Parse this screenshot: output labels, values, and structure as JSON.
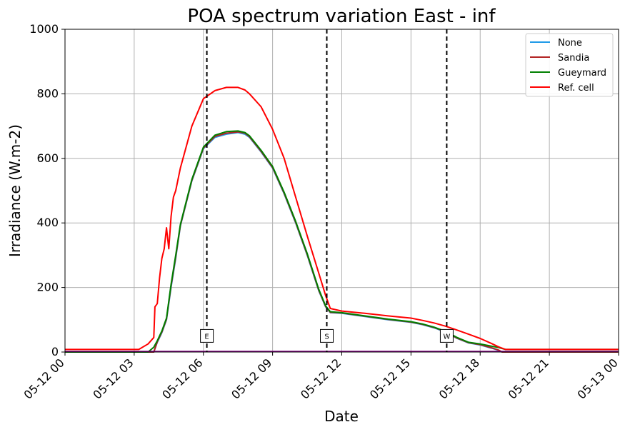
{
  "chart_data": {
    "type": "line",
    "title": "POA spectrum variation East - inf",
    "xlabel": "Date",
    "ylabel": "Irradiance (W.m-2)",
    "xlim": [
      "2024-05-12 00:00",
      "2024-05-13 00:00"
    ],
    "ylim": [
      0,
      1000
    ],
    "grid": true,
    "legend_position": "top-right",
    "xticks": [
      "05-12 00",
      "05-12 03",
      "05-12 06",
      "05-12 09",
      "05-12 12",
      "05-12 15",
      "05-12 18",
      "05-12 21",
      "05-13 00"
    ],
    "xtick_hours": [
      0,
      3,
      6,
      9,
      12,
      15,
      18,
      21,
      24
    ],
    "yticks": [
      0,
      200,
      400,
      600,
      800,
      1000
    ],
    "vlines": [
      {
        "label": "E",
        "x_hour": 6.15
      },
      {
        "label": "S",
        "x_hour": 11.35
      },
      {
        "label": "W",
        "x_hour": 16.55
      }
    ],
    "series": [
      {
        "name": "None",
        "color": "#1f9ae8",
        "x_hour": [
          0,
          3.6,
          3.85,
          4.0,
          4.2,
          4.4,
          4.6,
          4.8,
          5.0,
          5.5,
          6.0,
          6.5,
          7.0,
          7.5,
          7.8,
          8.0,
          8.5,
          9.0,
          9.5,
          10.0,
          10.5,
          11.0,
          11.3,
          11.5,
          12.0,
          13.0,
          14.0,
          15.0,
          15.5,
          16.0,
          16.5,
          17.0,
          17.5,
          18.0,
          18.5,
          18.8,
          18.95,
          24
        ],
        "y": [
          0,
          0,
          0,
          30,
          60,
          100,
          200,
          290,
          390,
          530,
          630,
          665,
          675,
          680,
          675,
          665,
          620,
          570,
          490,
          400,
          300,
          190,
          140,
          122,
          120,
          110,
          100,
          92,
          85,
          75,
          62,
          42,
          28,
          22,
          12,
          5,
          0,
          0
        ]
      },
      {
        "name": "Sandia",
        "color": "#b22222",
        "x_hour": [
          0,
          3.6,
          3.85,
          4.0,
          4.2,
          4.4,
          4.6,
          4.8,
          5.0,
          5.5,
          6.0,
          6.5,
          7.0,
          7.5,
          7.8,
          8.0,
          8.5,
          9.0,
          9.5,
          10.0,
          10.5,
          11.0,
          11.3,
          11.5,
          12.0,
          13.0,
          14.0,
          15.0,
          15.5,
          16.0,
          16.5,
          17.0,
          17.5,
          18.0,
          18.5,
          18.8,
          18.95,
          24
        ],
        "y": [
          0,
          0,
          0,
          32,
          62,
          102,
          205,
          295,
          392,
          532,
          632,
          668,
          678,
          682,
          678,
          667,
          622,
          572,
          492,
          402,
          302,
          192,
          141,
          123,
          121,
          111,
          101,
          93,
          86,
          76,
          63,
          43,
          29,
          23,
          13,
          6,
          0,
          0
        ]
      },
      {
        "name": "Gueymard",
        "color": "#008000",
        "x_hour": [
          0,
          3.6,
          3.85,
          4.0,
          4.2,
          4.4,
          4.6,
          4.8,
          5.0,
          5.5,
          6.0,
          6.5,
          7.0,
          7.5,
          7.8,
          8.0,
          8.5,
          9.0,
          9.5,
          10.0,
          10.5,
          11.0,
          11.3,
          11.5,
          12.0,
          13.0,
          14.0,
          15.0,
          15.5,
          16.0,
          16.5,
          17.0,
          17.5,
          18.0,
          18.5,
          18.8,
          19.1,
          24
        ],
        "y": [
          0,
          0,
          15,
          35,
          65,
          105,
          210,
          300,
          395,
          535,
          635,
          672,
          683,
          685,
          680,
          670,
          625,
          575,
          495,
          405,
          305,
          195,
          143,
          125,
          122,
          112,
          102,
          94,
          87,
          77,
          64,
          45,
          30,
          25,
          18,
          14,
          8,
          8
        ]
      },
      {
        "name": "Ref. cell",
        "color": "#ff0000",
        "x_hour": [
          0,
          3.2,
          3.6,
          3.85,
          3.9,
          4.0,
          4.1,
          4.2,
          4.3,
          4.4,
          4.5,
          4.6,
          4.7,
          4.8,
          5.0,
          5.5,
          6.0,
          6.5,
          7.0,
          7.5,
          7.8,
          8.0,
          8.5,
          9.0,
          9.5,
          10.0,
          10.5,
          11.0,
          11.3,
          11.5,
          12.0,
          13.0,
          14.0,
          15.0,
          15.5,
          16.0,
          16.5,
          17.0,
          17.5,
          18.0,
          18.5,
          18.8,
          19.1,
          24
        ],
        "y": [
          8,
          8,
          25,
          45,
          140,
          150,
          230,
          290,
          320,
          385,
          320,
          420,
          480,
          500,
          570,
          700,
          785,
          810,
          820,
          820,
          812,
          800,
          760,
          690,
          600,
          480,
          360,
          245,
          175,
          135,
          127,
          120,
          112,
          105,
          98,
          90,
          80,
          68,
          55,
          42,
          26,
          16,
          8,
          8
        ]
      }
    ]
  }
}
